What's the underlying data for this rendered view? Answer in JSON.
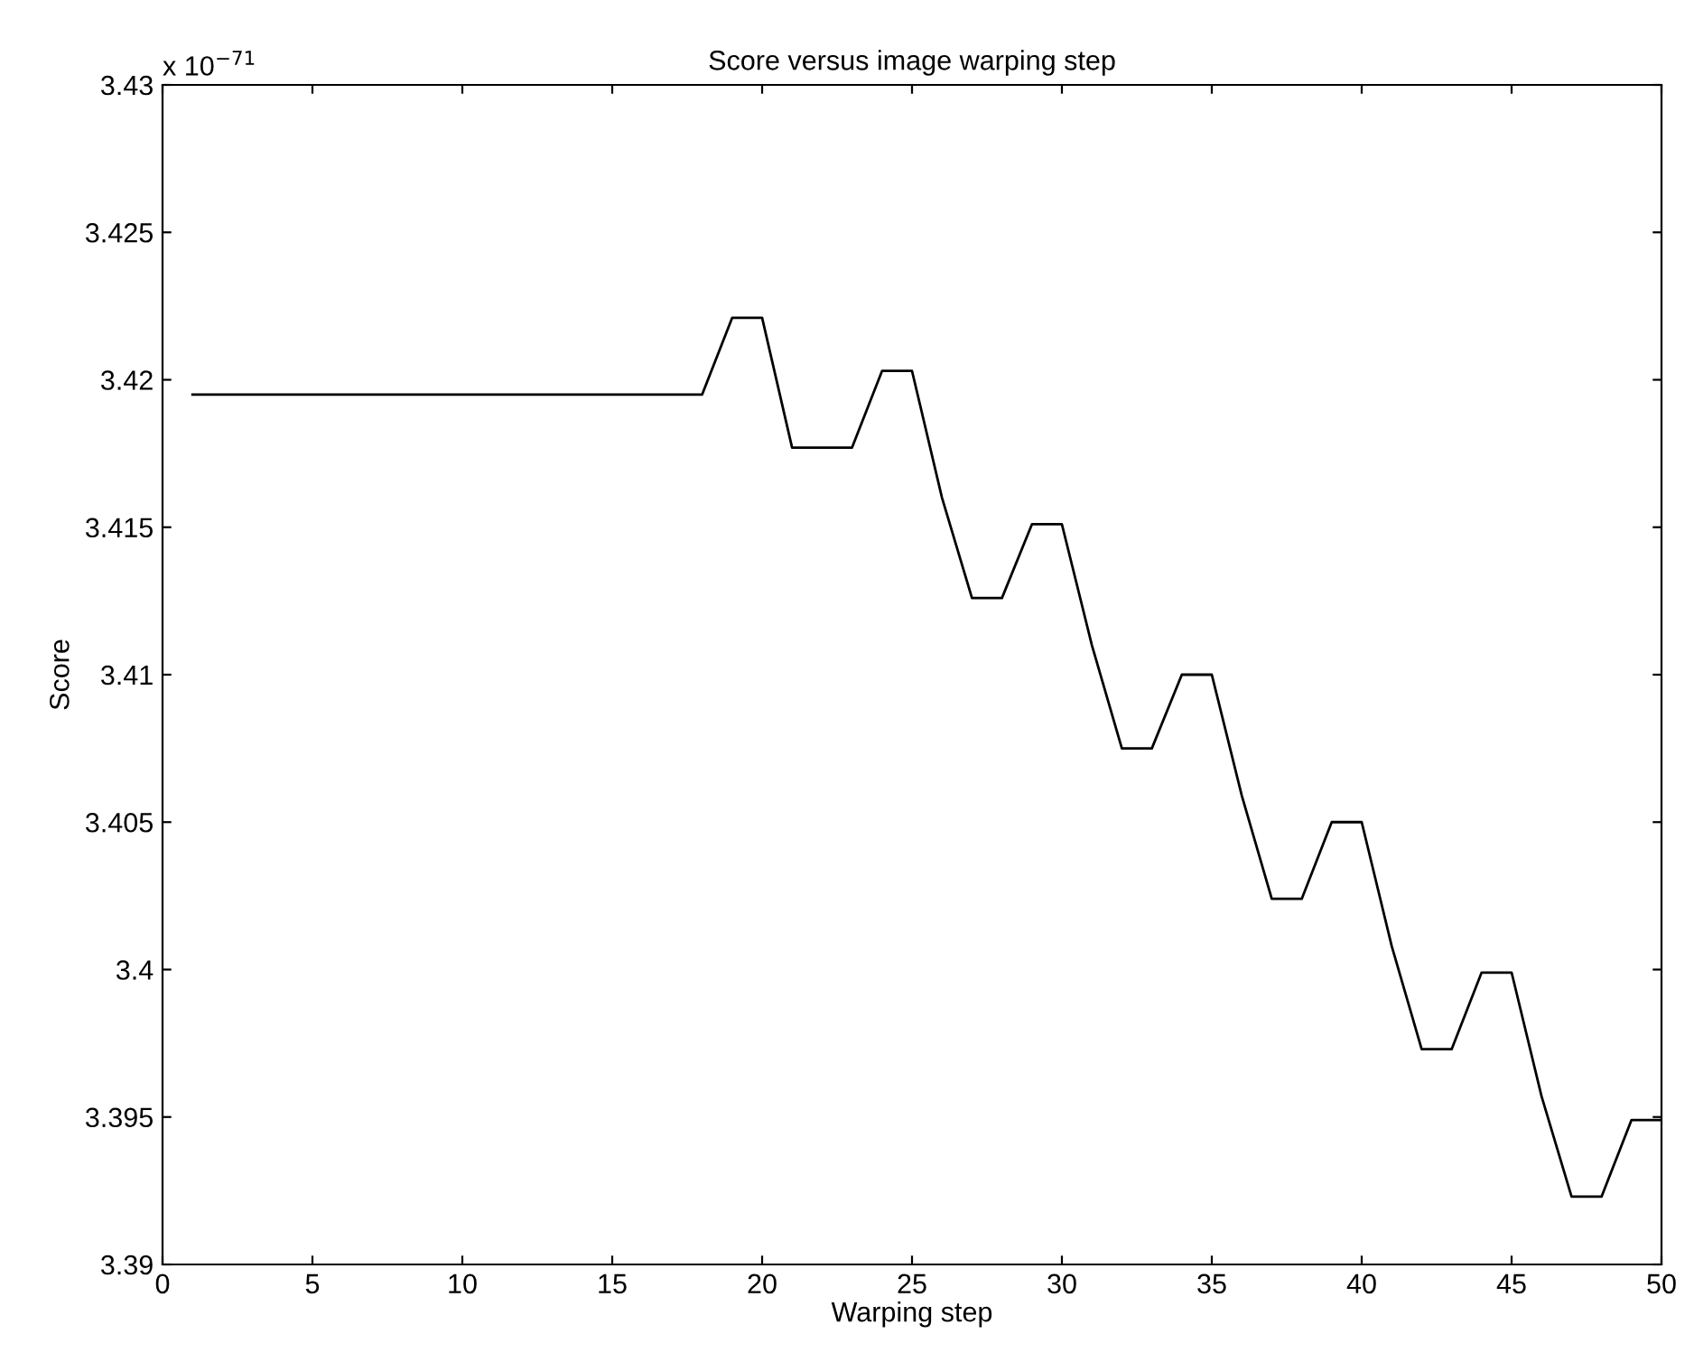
{
  "chart_data": {
    "type": "line",
    "title": "Score versus image warping step",
    "xlabel": "Warping step",
    "ylabel": "Score",
    "annotations": [
      "x 10$^{−71}$"
    ],
    "x": [
      1,
      2,
      3,
      4,
      5,
      6,
      7,
      8,
      9,
      10,
      11,
      12,
      13,
      14,
      15,
      16,
      17,
      18,
      19,
      20,
      21,
      22,
      23,
      24,
      25,
      26,
      27,
      28,
      29,
      30,
      31,
      32,
      33,
      34,
      35,
      36,
      37,
      38,
      39,
      40,
      41,
      42,
      43,
      44,
      45,
      46,
      47,
      48,
      49,
      50
    ],
    "series": [
      {
        "color": "#000000",
        "values": [
          3.4195,
          3.4195,
          3.4195,
          3.4195,
          3.4195,
          3.4195,
          3.4195,
          3.4195,
          3.4195,
          3.4195,
          3.4195,
          3.4195,
          3.4195,
          3.4195,
          3.4195,
          3.4195,
          3.4195,
          3.4195,
          3.4221,
          3.4221,
          3.4177,
          3.4177,
          3.4177,
          3.4203,
          3.4203,
          3.416,
          3.4126,
          3.4126,
          3.4151,
          3.4151,
          3.411,
          3.4075,
          3.4075,
          3.41,
          3.41,
          3.4059,
          3.4024,
          3.4024,
          3.405,
          3.405,
          3.4008,
          3.3973,
          3.3973,
          3.3999,
          3.3999,
          3.3957,
          3.3923,
          3.3923,
          3.3949,
          3.3949
        ]
      }
    ],
    "xlim": [
      0,
      50
    ],
    "xticks": [
      0,
      5,
      10,
      15,
      20,
      25,
      30,
      35,
      40,
      45,
      50
    ],
    "ylim": [
      3.39,
      3.43
    ],
    "yticks": [
      3.39,
      3.395,
      3.4,
      3.405,
      3.41,
      3.415,
      3.42,
      3.425,
      3.43
    ],
    "grid": false,
    "legend": false,
    "marker": "none",
    "line_style": "solid"
  }
}
